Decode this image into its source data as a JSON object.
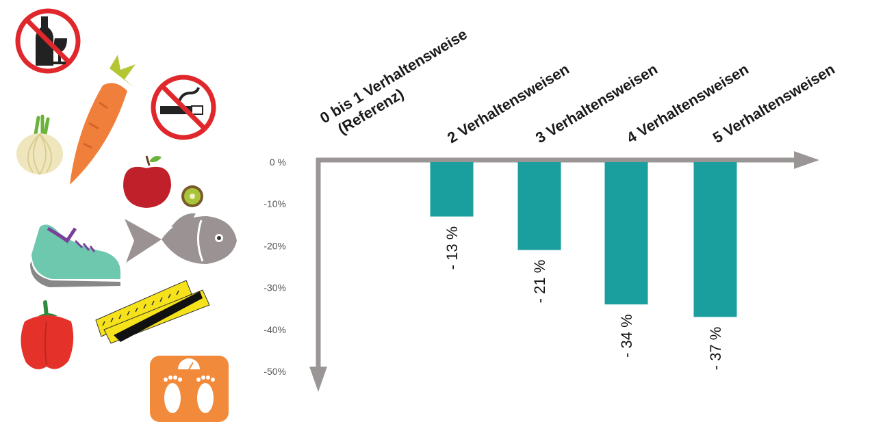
{
  "chart_data": {
    "type": "bar",
    "categories": [
      [
        "0 bis 1  Verhaltensweise",
        "(Referenz)"
      ],
      [
        "2 Verhaltensweisen"
      ],
      [
        "3 Verhaltensweisen"
      ],
      [
        "4 Verhaltensweisen"
      ],
      [
        "5 Verhaltensweisen"
      ]
    ],
    "values": [
      0,
      -13,
      -21,
      -34,
      -37
    ],
    "value_labels": [
      "",
      "- 13 %",
      "- 21 %",
      "- 34 %",
      "- 37 %"
    ],
    "y_ticks": [
      0,
      -10,
      -20,
      -30,
      -40,
      -50
    ],
    "y_tick_labels": [
      "0 %",
      "-10%",
      "-20%",
      "-30%",
      "-40%",
      "-50%"
    ],
    "ylim": [
      0,
      -50
    ],
    "title": "",
    "xlabel": "",
    "ylabel": "",
    "grid": false,
    "colors": {
      "bar": "#1a9e9e",
      "axis": "#9a9696"
    }
  },
  "icons": [
    "no-alcohol-icon",
    "carrot-icon",
    "onion-icon",
    "no-smoking-icon",
    "apple-icon",
    "kiwi-icon",
    "sneaker-icon",
    "fish-icon",
    "bell-pepper-icon",
    "measuring-tape-icon",
    "bathroom-scale-icon"
  ]
}
